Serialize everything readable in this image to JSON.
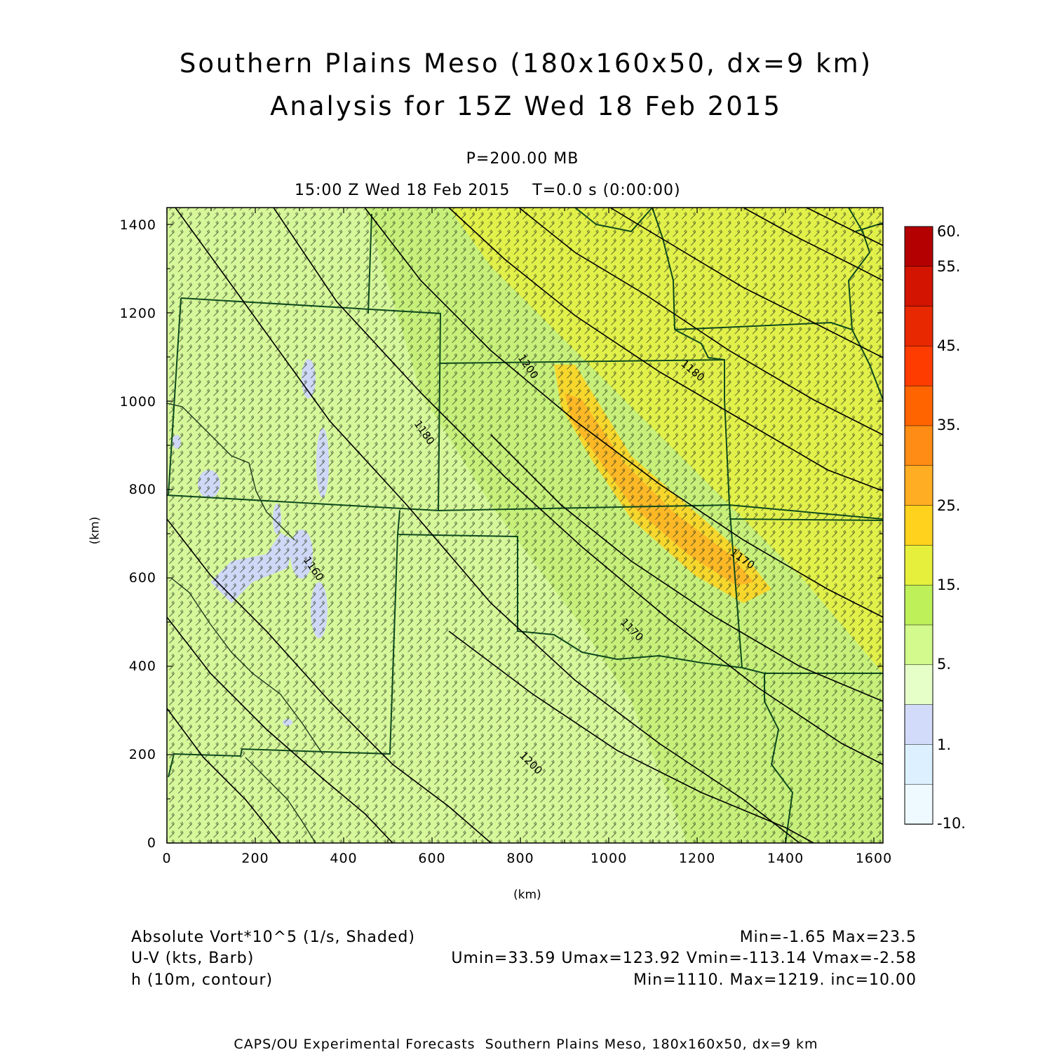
{
  "title": {
    "line1": "Southern Plains Meso (180x160x50, dx=9 km)",
    "line2": "Analysis for 15Z Wed 18 Feb 2015"
  },
  "subtitle": {
    "level": "P=200.00 MB",
    "time": "15:00 Z Wed 18 Feb 2015    T=0.0 s (0:00:00)"
  },
  "axes": {
    "x_label": "(km)",
    "y_label": "(km)",
    "x_ticks": [
      "0",
      "200",
      "400",
      "600",
      "800",
      "1000",
      "1200",
      "1400",
      "1600"
    ],
    "y_ticks": [
      "0",
      "200",
      "400",
      "600",
      "800",
      "1000",
      "1200",
      "1400"
    ],
    "x_range": [
      0,
      1620
    ],
    "y_range": [
      0,
      1440
    ]
  },
  "colorbar": {
    "labels": [
      "60.",
      "55.",
      "45.",
      "35.",
      "25.",
      "15.",
      "5.",
      "1.",
      "-10."
    ],
    "colors_top_to_bottom": [
      "#b40000",
      "#d21400",
      "#e82800",
      "#ff3c00",
      "#ff6400",
      "#ff8c14",
      "#ffae24",
      "#ffd21e",
      "#e6f03c",
      "#bef05a",
      "#d2fa8c",
      "#e6ffc8",
      "#d2dcfa",
      "#dcf0ff",
      "#eefaff"
    ]
  },
  "contours": {
    "labels": [
      "1200",
      "1180",
      "1160",
      "1170",
      "1200",
      "1170",
      "1180",
      "1200"
    ]
  },
  "legend": {
    "shaded_name": "Absolute Vort*10^5 (1/s, Shaded)",
    "shaded_stats": "Min=-1.65 Max=23.5",
    "barb_name": "U-V (kts, Barb)",
    "barb_stats": "Umin=33.59 Umax=123.92 Vmin=-113.14 Vmax=-2.58",
    "contour_name": "h (10m, contour)",
    "contour_stats": "Min=1110. Max=1219. inc=10.00"
  },
  "footer": "CAPS/OU Experimental Forecasts  Southern Plains Meso, 180x160x50, dx=9 km"
}
